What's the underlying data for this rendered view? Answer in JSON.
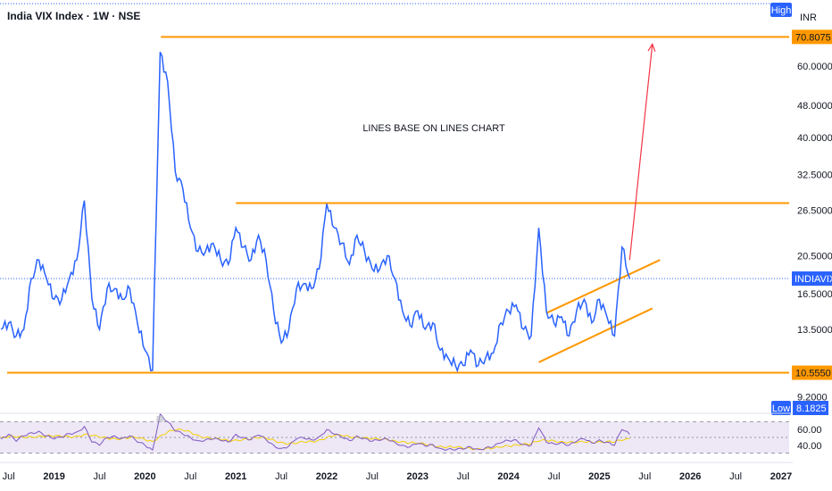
{
  "title": "India VIX Index · 1W · NSE",
  "currency": "INR",
  "badges": {
    "high": "High",
    "low": "Low"
  },
  "annotation": "LINES BASE ON LINES CHART",
  "colors": {
    "line": "#2962ff",
    "level": "#ff9800",
    "projection": "#f23645",
    "rsi_line": "#7e57c2",
    "rsi_ma": "#f5d000",
    "rsi_band": "#ede7f6",
    "tag_blue": "#2962ff"
  },
  "chart_data": [
    {
      "type": "line",
      "series": [
        {
          "name": "INDIAVIX",
          "x": [
            "2018-06",
            "2018-07",
            "2018-08",
            "2018-09",
            "2018-10",
            "2018-11",
            "2018-12",
            "2019-01",
            "2019-02",
            "2019-03",
            "2019-04",
            "2019-05",
            "2019-06",
            "2019-07",
            "2019-08",
            "2019-09",
            "2019-10",
            "2019-11",
            "2019-12",
            "2020-01",
            "2020-02",
            "2020-03",
            "2020-04",
            "2020-05",
            "2020-06",
            "2020-07",
            "2020-08",
            "2020-09",
            "2020-10",
            "2020-11",
            "2020-12",
            "2021-01",
            "2021-02",
            "2021-03",
            "2021-04",
            "2021-05",
            "2021-06",
            "2021-07",
            "2021-08",
            "2021-09",
            "2021-10",
            "2021-11",
            "2021-12",
            "2022-01",
            "2022-02",
            "2022-03",
            "2022-04",
            "2022-05",
            "2022-06",
            "2022-07",
            "2022-08",
            "2022-09",
            "2022-10",
            "2022-11",
            "2022-12",
            "2023-01",
            "2023-02",
            "2023-03",
            "2023-04",
            "2023-05",
            "2023-06",
            "2023-07",
            "2023-08",
            "2023-09",
            "2023-10",
            "2023-11",
            "2023-12",
            "2024-01",
            "2024-02",
            "2024-03",
            "2024-04",
            "2024-05",
            "2024-06",
            "2024-07",
            "2024-08",
            "2024-09",
            "2024-10",
            "2024-11",
            "2024-12",
            "2025-01",
            "2025-02",
            "2025-03",
            "2025-04",
            "2025-05"
          ],
          "values": [
            13.5,
            14.0,
            13.0,
            13.5,
            18.0,
            20.0,
            18.0,
            16.0,
            16.0,
            18.0,
            20.0,
            28.0,
            16.0,
            13.5,
            17.0,
            17.0,
            16.0,
            17.0,
            14.0,
            12.0,
            10.7,
            65.0,
            55.0,
            33.0,
            30.0,
            24.0,
            21.0,
            21.0,
            22.0,
            20.0,
            19.5,
            24.0,
            21.5,
            20.0,
            23.0,
            20.0,
            15.0,
            12.5,
            13.5,
            17.0,
            17.5,
            17.0,
            19.0,
            27.5,
            24.0,
            22.0,
            19.5,
            23.0,
            21.0,
            19.0,
            19.0,
            20.5,
            18.0,
            15.0,
            13.8,
            15.0,
            13.5,
            14.0,
            12.0,
            11.5,
            11.0,
            11.0,
            12.0,
            11.0,
            11.5,
            11.8,
            14.0,
            15.0,
            15.5,
            13.5,
            13.0,
            24.0,
            15.0,
            14.0,
            14.5,
            13.0,
            15.0,
            16.0,
            14.0,
            16.0,
            14.5,
            13.0,
            21.5,
            18.0
          ]
        }
      ],
      "yscale": "log",
      "ylim": [
        8.6,
        75
      ],
      "ticks_y": [
        "9.2000",
        "10.5550",
        "13.5000",
        "16.5000",
        "20.5000",
        "26.5000",
        "32.5000",
        "40.0000",
        "48.0000",
        "60.0000",
        "70.8075"
      ],
      "ticks_x": [
        "Jul",
        "2019",
        "Jul",
        "2020",
        "Jul",
        "2021",
        "Jul",
        "2022",
        "Jul",
        "2023",
        "Jul",
        "2024",
        "Jul",
        "2025",
        "Jul",
        "2026",
        "Jul",
        "2027"
      ],
      "levels": [
        {
          "label": "70.8075",
          "value": 70.8075
        },
        {
          "label": "",
          "value": 27.6
        },
        {
          "label": "10.5550",
          "value": 10.555
        }
      ],
      "price_tags": {
        "high": "70.8075",
        "last_label": "INDIAVIX",
        "low_value": "8.1825",
        "support": "10.5550"
      },
      "channel": {
        "lower": [
          [
            "2024-05",
            11.2
          ],
          [
            "2025-08",
            15.2
          ]
        ],
        "upper": [
          [
            "2024-06",
            14.8
          ],
          [
            "2025-09",
            20.0
          ]
        ]
      },
      "projection": {
        "from": [
          "2025-05",
          20.0
        ],
        "to": [
          "2025-08",
          68.0
        ]
      }
    },
    {
      "type": "line",
      "name": "RSI",
      "ticks_y": [
        "60.00",
        "40.00"
      ],
      "ylim": [
        25,
        75
      ],
      "series": [
        {
          "name": "RSI",
          "values": [
            48,
            54,
            45,
            52,
            56,
            58,
            52,
            48,
            50,
            55,
            57,
            64,
            44,
            40,
            50,
            52,
            49,
            52,
            44,
            40,
            34,
            80,
            70,
            58,
            54,
            50,
            46,
            47,
            48,
            46,
            44,
            54,
            50,
            47,
            53,
            47,
            40,
            36,
            39,
            48,
            49,
            47,
            51,
            60,
            54,
            50,
            46,
            52,
            49,
            45,
            46,
            48,
            44,
            40,
            38,
            42,
            39,
            41,
            36,
            35,
            34,
            35,
            38,
            35,
            37,
            38,
            43,
            46,
            47,
            41,
            40,
            62,
            44,
            42,
            44,
            40,
            45,
            48,
            43,
            47,
            44,
            40,
            60,
            54
          ]
        },
        {
          "name": "MA",
          "values": [
            50,
            51,
            50,
            50,
            51,
            52,
            52,
            51,
            51,
            51,
            52,
            54,
            52,
            50,
            49,
            49,
            49,
            50,
            49,
            47,
            45,
            52,
            57,
            59,
            59,
            57,
            53,
            50,
            48,
            47,
            46,
            47,
            48,
            48,
            49,
            49,
            47,
            44,
            42,
            42,
            44,
            45,
            47,
            50,
            52,
            52,
            51,
            51,
            50,
            48,
            47,
            47,
            46,
            45,
            43,
            42,
            41,
            40,
            39,
            38,
            37,
            36,
            36,
            36,
            36,
            36,
            37,
            39,
            41,
            42,
            42,
            45,
            46,
            46,
            45,
            44,
            43,
            44,
            44,
            45,
            45,
            44,
            46,
            48
          ]
        }
      ]
    }
  ]
}
